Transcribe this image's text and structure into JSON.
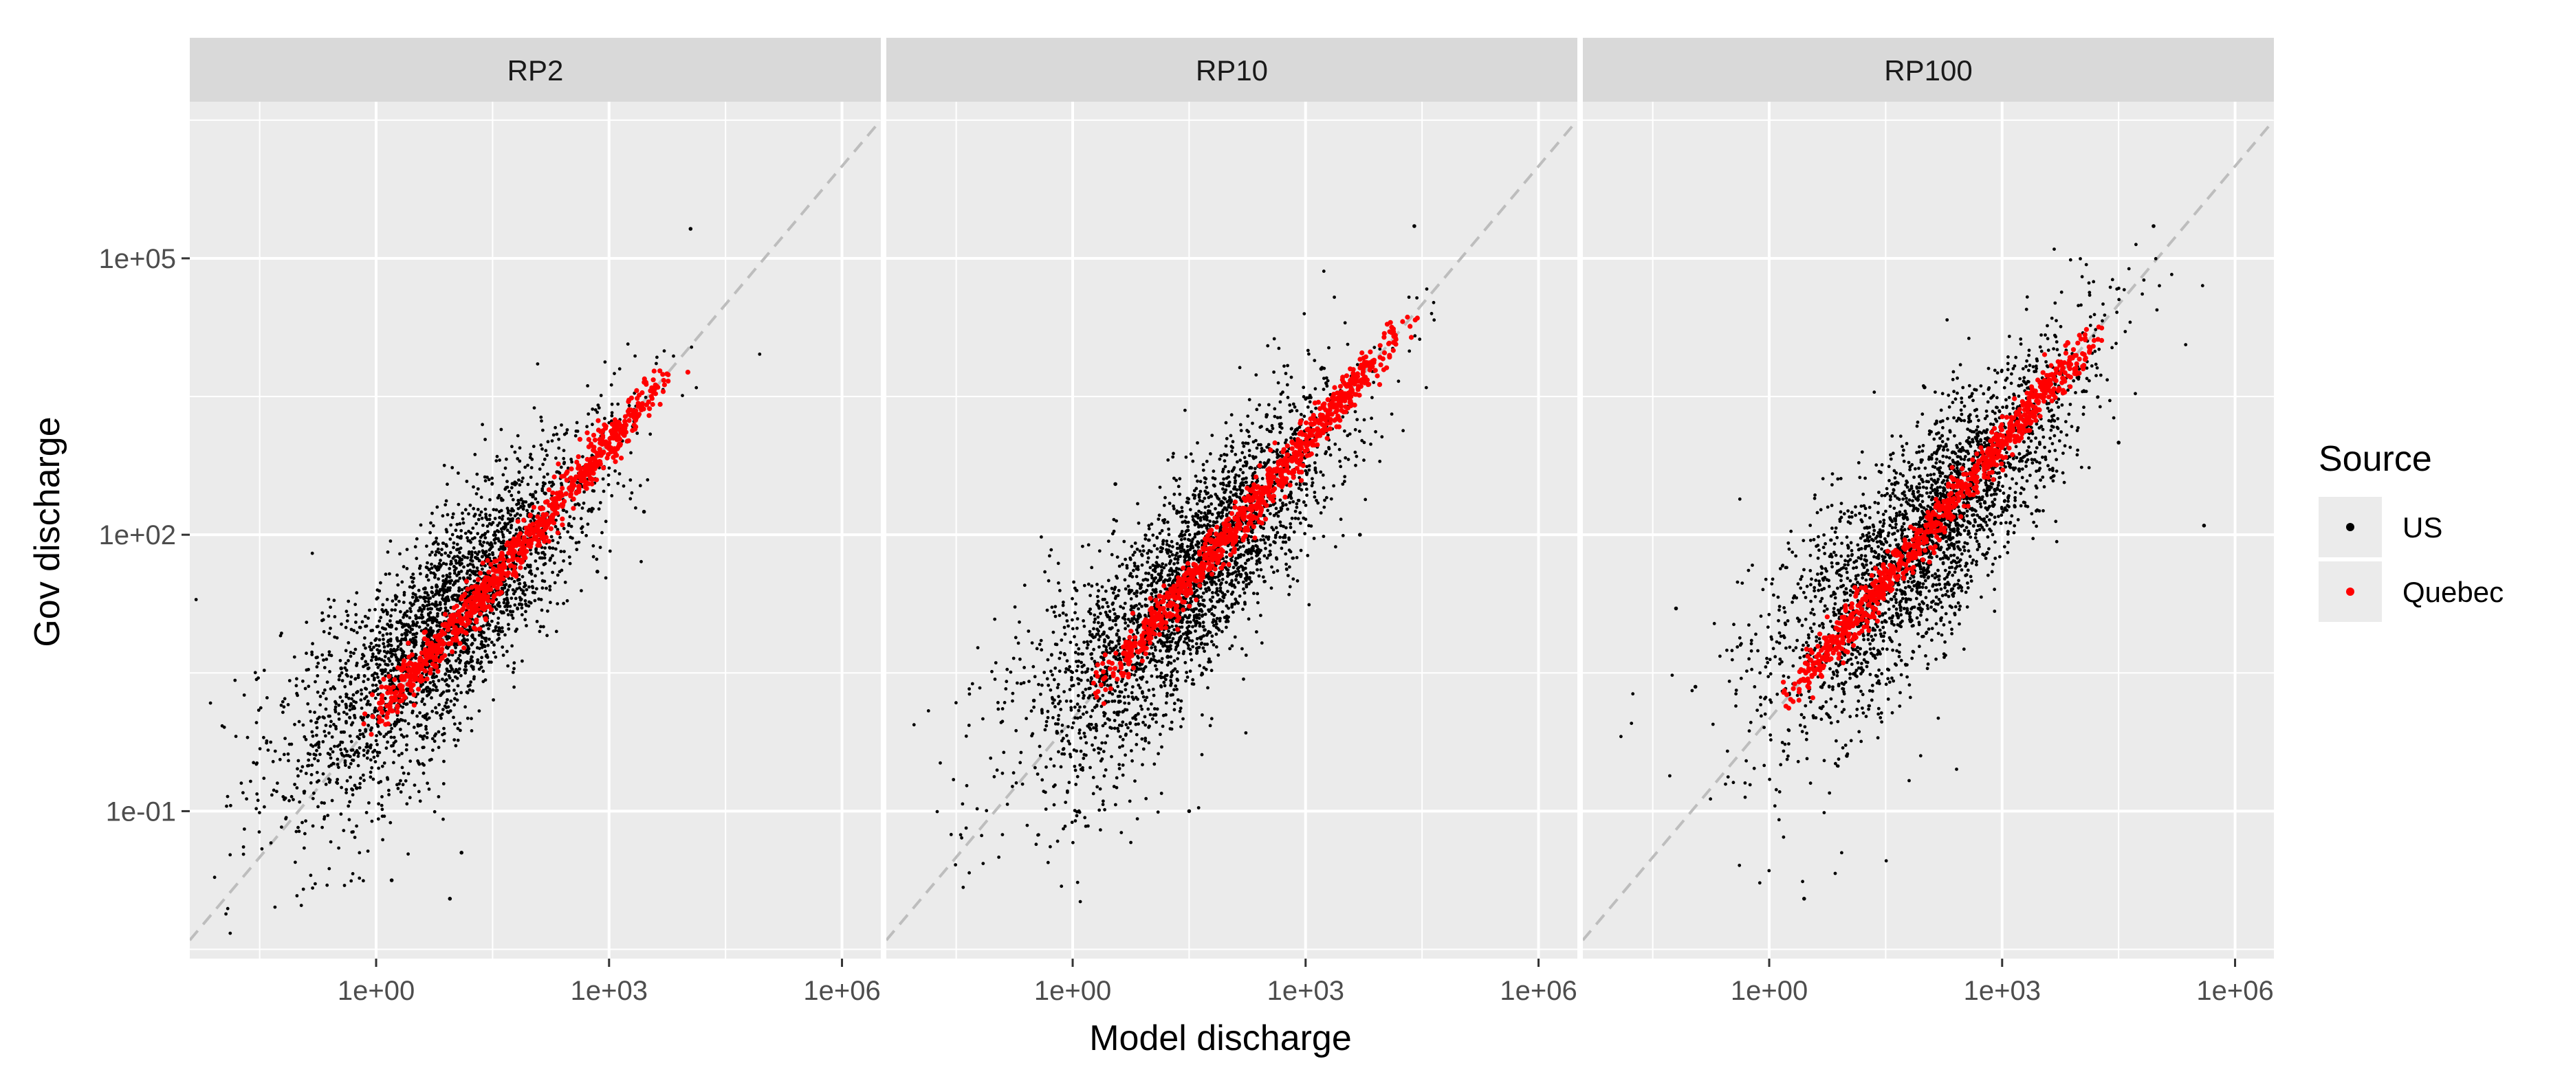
{
  "chart_data": {
    "type": "scatter",
    "xlabel": "Model discharge",
    "ylabel": "Gov discharge",
    "x_scale": "log10",
    "y_scale": "log10",
    "xlim": [
      0.00398,
      3162278
    ],
    "ylim": [
      0.00251,
      5011872
    ],
    "x_ticks": [
      1,
      1000,
      1000000
    ],
    "x_tick_labels": [
      "1e+00",
      "1e+03",
      "1e+06"
    ],
    "y_ticks": [
      0.1,
      100,
      100000
    ],
    "y_tick_labels": [
      "1e-01",
      "1e+02",
      "1e+05"
    ],
    "reference_line": "y = x (dashed)",
    "grid": true,
    "legend": {
      "title": "Source",
      "position": "right",
      "entries": [
        {
          "label": "US",
          "color": "#000000"
        },
        {
          "label": "Quebec",
          "color": "#ff0000"
        }
      ]
    },
    "facets": [
      {
        "label": "RP2",
        "series": [
          {
            "name": "US",
            "color": "#000000",
            "log10_center": [
              0.9,
              1.05
            ],
            "spread": 0.55,
            "n": 2800,
            "outliers": [
              [
                -0.45,
                0.55
              ],
              [
                -0.25,
                -0.75
              ],
              [
                4.05,
                5.32
              ],
              [
                0.95,
                -1.95
              ],
              [
                0.2,
                -1.75
              ],
              [
                1.1,
                -1.45
              ],
              [
                2.85,
                1.6
              ],
              [
                3.45,
                2.25
              ]
            ]
          },
          {
            "name": "Quebec",
            "color": "#ff0000",
            "log10_center": [
              1.85,
              1.85
            ],
            "spread": 0.12,
            "n": 900
          }
        ]
      },
      {
        "label": "RP10",
        "series": [
          {
            "name": "US",
            "color": "#000000",
            "log10_center": [
              1.45,
              1.45
            ],
            "spread": 0.55,
            "n": 2800,
            "outliers": [
              [
                0.55,
                2.55
              ],
              [
                -0.5,
                0.2
              ],
              [
                -0.2,
                -0.15
              ],
              [
                4.4,
                5.35
              ],
              [
                3.7,
                2.0
              ],
              [
                1.5,
                -1.0
              ],
              [
                3.2,
                3.8
              ],
              [
                2.5,
                3.3
              ]
            ]
          },
          {
            "name": "Quebec",
            "color": "#ff0000",
            "log10_center": [
              2.3,
              2.3
            ],
            "spread": 0.12,
            "n": 900
          }
        ]
      },
      {
        "label": "RP100",
        "series": [
          {
            "name": "US",
            "color": "#000000",
            "log10_center": [
              2.05,
              2.05
            ],
            "spread": 0.55,
            "n": 2800,
            "outliers": [
              [
                -1.2,
                1.2
              ],
              [
                -0.95,
                0.35
              ],
              [
                0.45,
                -1.95
              ],
              [
                4.95,
                5.35
              ],
              [
                5.6,
                2.1
              ],
              [
                4.5,
                3.0
              ],
              [
                2.0,
                3.6
              ],
              [
                1.0,
                -0.4
              ]
            ]
          },
          {
            "name": "Quebec",
            "color": "#ff0000",
            "log10_center": [
              2.2,
              2.2
            ],
            "spread": 0.12,
            "n": 900
          }
        ]
      }
    ]
  }
}
